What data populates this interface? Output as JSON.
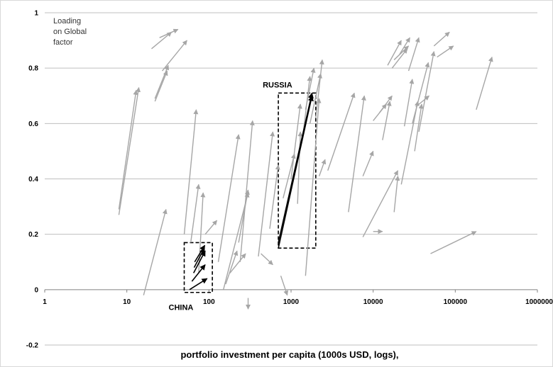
{
  "chart_data": {
    "type": "scatter",
    "subtype": "arrow-vectors",
    "xlabel": "portfolio investment per capita (1000s USD, logs),",
    "x_scale": "log",
    "xlim": [
      1,
      1000000
    ],
    "x_ticks": [
      "1",
      "10",
      "100",
      "1000",
      "10000",
      "100000",
      "1000000"
    ],
    "ylim": [
      -0.2,
      1
    ],
    "y_ticks": [
      "-0.2",
      "0",
      "0.2",
      "0.4",
      "0.6",
      "0.8",
      "1"
    ],
    "grid": "horizontal",
    "note_lines": [
      "Loading",
      "on Global",
      "factor"
    ],
    "annotations": [
      {
        "label": "RUSSIA",
        "box": {
          "x": [
            700,
            2000
          ],
          "y": [
            0.15,
            0.71
          ]
        }
      },
      {
        "label": "CHINA",
        "box": {
          "x": [
            50,
            110
          ],
          "y": [
            -0.01,
            0.17
          ]
        }
      }
    ],
    "colors": {
      "arrow": "#a6a6a6",
      "highlight": "#000000",
      "grid": "#bfbfbf"
    },
    "series": [
      {
        "color": "#a6a6a6",
        "arrows": [
          {
            "from": [
              20,
              0.87
            ],
            "to": [
              35,
              0.93
            ]
          },
          {
            "from": [
              25,
              0.91
            ],
            "to": [
              42,
              0.94
            ]
          },
          {
            "from": [
              22,
              0.69
            ],
            "to": [
              32,
              0.81
            ]
          },
          {
            "from": [
              22,
              0.68
            ],
            "to": [
              31,
              0.79
            ]
          },
          {
            "from": [
              27,
              0.79
            ],
            "to": [
              54,
              0.9
            ]
          },
          {
            "from": [
              8,
              0.27
            ],
            "to": [
              14,
              0.73
            ]
          },
          {
            "from": [
              8,
              0.29
            ],
            "to": [
              13,
              0.72
            ]
          },
          {
            "from": [
              16,
              -0.02
            ],
            "to": [
              30,
              0.29
            ]
          },
          {
            "from": [
              50,
              0.2
            ],
            "to": [
              70,
              0.65
            ]
          },
          {
            "from": [
              60,
              0.17
            ],
            "to": [
              75,
              0.38
            ]
          },
          {
            "from": [
              75,
              0.06
            ],
            "to": [
              85,
              0.35
            ]
          },
          {
            "from": [
              90,
              0.2
            ],
            "to": [
              125,
              0.25
            ]
          },
          {
            "from": [
              130,
              0.1
            ],
            "to": [
              230,
              0.56
            ]
          },
          {
            "from": [
              160,
              0.02
            ],
            "to": [
              220,
              0.14
            ]
          },
          {
            "from": [
              180,
              0.06
            ],
            "to": [
              280,
              0.13
            ]
          },
          {
            "from": [
              230,
              0.17
            ],
            "to": [
              300,
              0.36
            ]
          },
          {
            "from": [
              240,
              0.1
            ],
            "to": [
              340,
              0.61
            ]
          },
          {
            "from": [
              150,
              0.0
            ],
            "to": [
              300,
              0.35
            ]
          },
          {
            "from": [
              300,
              -0.03
            ],
            "to": [
              300,
              -0.07
            ]
          },
          {
            "from": [
              400,
              0.12
            ],
            "to": [
              600,
              0.57
            ]
          },
          {
            "from": [
              430,
              0.13
            ],
            "to": [
              600,
              0.09
            ]
          },
          {
            "from": [
              550,
              0.22
            ],
            "to": [
              700,
              0.45
            ]
          },
          {
            "from": [
              750,
              0.05
            ],
            "to": [
              900,
              -0.02
            ]
          },
          {
            "from": [
              800,
              0.33
            ],
            "to": [
              1100,
              0.49
            ]
          },
          {
            "from": [
              1000,
              0.4
            ],
            "to": [
              1300,
              0.67
            ]
          },
          {
            "from": [
              1200,
              0.31
            ],
            "to": [
              1300,
              0.57
            ]
          },
          {
            "from": [
              1400,
              0.56
            ],
            "to": [
              1700,
              0.77
            ]
          },
          {
            "from": [
              1500,
              0.65
            ],
            "to": [
              1900,
              0.8
            ]
          },
          {
            "from": [
              1500,
              0.05
            ],
            "to": [
              2200,
              0.69
            ]
          },
          {
            "from": [
              1700,
              0.6
            ],
            "to": [
              2300,
              0.78
            ]
          },
          {
            "from": [
              2000,
              0.62
            ],
            "to": [
              2400,
              0.83
            ]
          },
          {
            "from": [
              2200,
              0.41
            ],
            "to": [
              2600,
              0.47
            ]
          },
          {
            "from": [
              2800,
              0.43
            ],
            "to": [
              5900,
              0.71
            ]
          },
          {
            "from": [
              5000,
              0.28
            ],
            "to": [
              7800,
              0.7
            ]
          },
          {
            "from": [
              10000,
              0.61
            ],
            "to": [
              14500,
              0.67
            ]
          },
          {
            "from": [
              12000,
              0.64
            ],
            "to": [
              17000,
              0.7
            ]
          },
          {
            "from": [
              13000,
              0.54
            ],
            "to": [
              16000,
              0.68
            ]
          },
          {
            "from": [
              7500,
              0.41
            ],
            "to": [
              10000,
              0.5
            ]
          },
          {
            "from": [
              10000,
              0.21
            ],
            "to": [
              13000,
              0.21
            ]
          },
          {
            "from": [
              7500,
              0.19
            ],
            "to": [
              20000,
              0.43
            ]
          },
          {
            "from": [
              18000,
              0.28
            ],
            "to": [
              20000,
              0.41
            ]
          },
          {
            "from": [
              15000,
              0.81
            ],
            "to": [
              22000,
              0.9
            ]
          },
          {
            "from": [
              18000,
              0.83
            ],
            "to": [
              27000,
              0.88
            ]
          },
          {
            "from": [
              21000,
              0.85
            ],
            "to": [
              28000,
              0.91
            ]
          },
          {
            "from": [
              17000,
              0.8
            ],
            "to": [
              26000,
              0.87
            ]
          },
          {
            "from": [
              22000,
              0.38
            ],
            "to": [
              35000,
              0.68
            ]
          },
          {
            "from": [
              24000,
              0.59
            ],
            "to": [
              30000,
              0.76
            ]
          },
          {
            "from": [
              27000,
              0.79
            ],
            "to": [
              36000,
              0.91
            ]
          },
          {
            "from": [
              32000,
              0.5
            ],
            "to": [
              39000,
              0.67
            ]
          },
          {
            "from": [
              30000,
              0.6
            ],
            "to": [
              47000,
              0.82
            ]
          },
          {
            "from": [
              33000,
              0.66
            ],
            "to": [
              48000,
              0.7
            ]
          },
          {
            "from": [
              36000,
              0.57
            ],
            "to": [
              55000,
              0.86
            ]
          },
          {
            "from": [
              55000,
              0.88
            ],
            "to": [
              85000,
              0.93
            ]
          },
          {
            "from": [
              60000,
              0.84
            ],
            "to": [
              95000,
              0.88
            ]
          },
          {
            "from": [
              50000,
              0.13
            ],
            "to": [
              180000,
              0.21
            ]
          },
          {
            "from": [
              180000,
              0.65
            ],
            "to": [
              280000,
              0.84
            ]
          }
        ]
      },
      {
        "name": "RUSSIA",
        "color": "#000000",
        "arrows": [
          {
            "from": [
              700,
              0.17
            ],
            "to": [
              1800,
              0.71
            ]
          },
          {
            "from": [
              700,
              0.15
            ],
            "to": [
              1800,
              0.7
            ]
          }
        ]
      },
      {
        "name": "CHINA",
        "color": "#000000",
        "arrows": [
          {
            "from": [
              58,
              0.0
            ],
            "to": [
              95,
              0.04
            ]
          },
          {
            "from": [
              62,
              0.03
            ],
            "to": [
              90,
              0.09
            ]
          },
          {
            "from": [
              65,
              0.06
            ],
            "to": [
              90,
              0.14
            ]
          },
          {
            "from": [
              66,
              0.08
            ],
            "to": [
              88,
              0.15
            ]
          },
          {
            "from": [
              67,
              0.1
            ],
            "to": [
              89,
              0.16
            ]
          }
        ]
      }
    ]
  }
}
